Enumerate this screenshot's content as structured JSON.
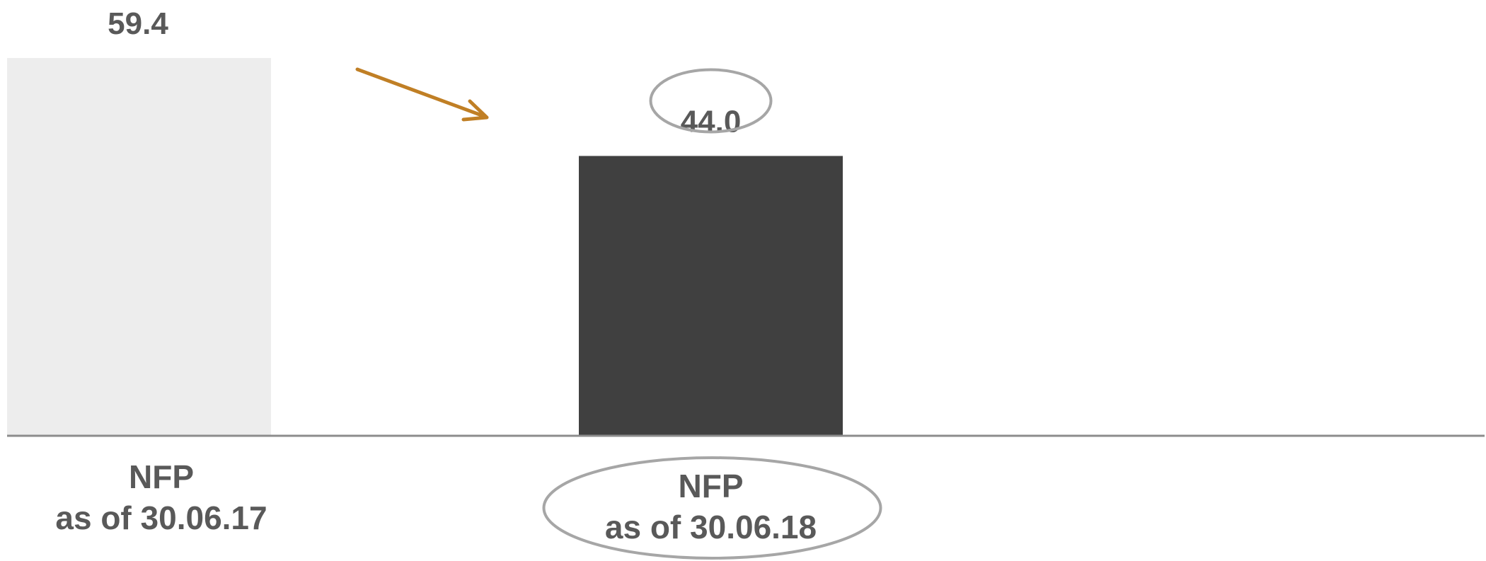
{
  "chart_data": {
    "type": "bar",
    "title": "",
    "xlabel": "",
    "ylabel": "",
    "categories": [
      [
        "NFP",
        "as of 30.06.17"
      ],
      [
        "NFP",
        "as of 30.06.18"
      ]
    ],
    "values": [
      59.4,
      44.0
    ],
    "value_labels": [
      "59.4",
      "44.0"
    ],
    "ylim": [
      0,
      59.4
    ],
    "grid": false,
    "legend": "none",
    "highlighted_category": 1,
    "colors": {
      "bars": [
        "#ededed",
        "#404040"
      ],
      "labels": "#595959",
      "axis": "#8c8c8c",
      "highlight_ellipse": "#a6a6a6",
      "trend_arrow": "#c07f25"
    }
  }
}
